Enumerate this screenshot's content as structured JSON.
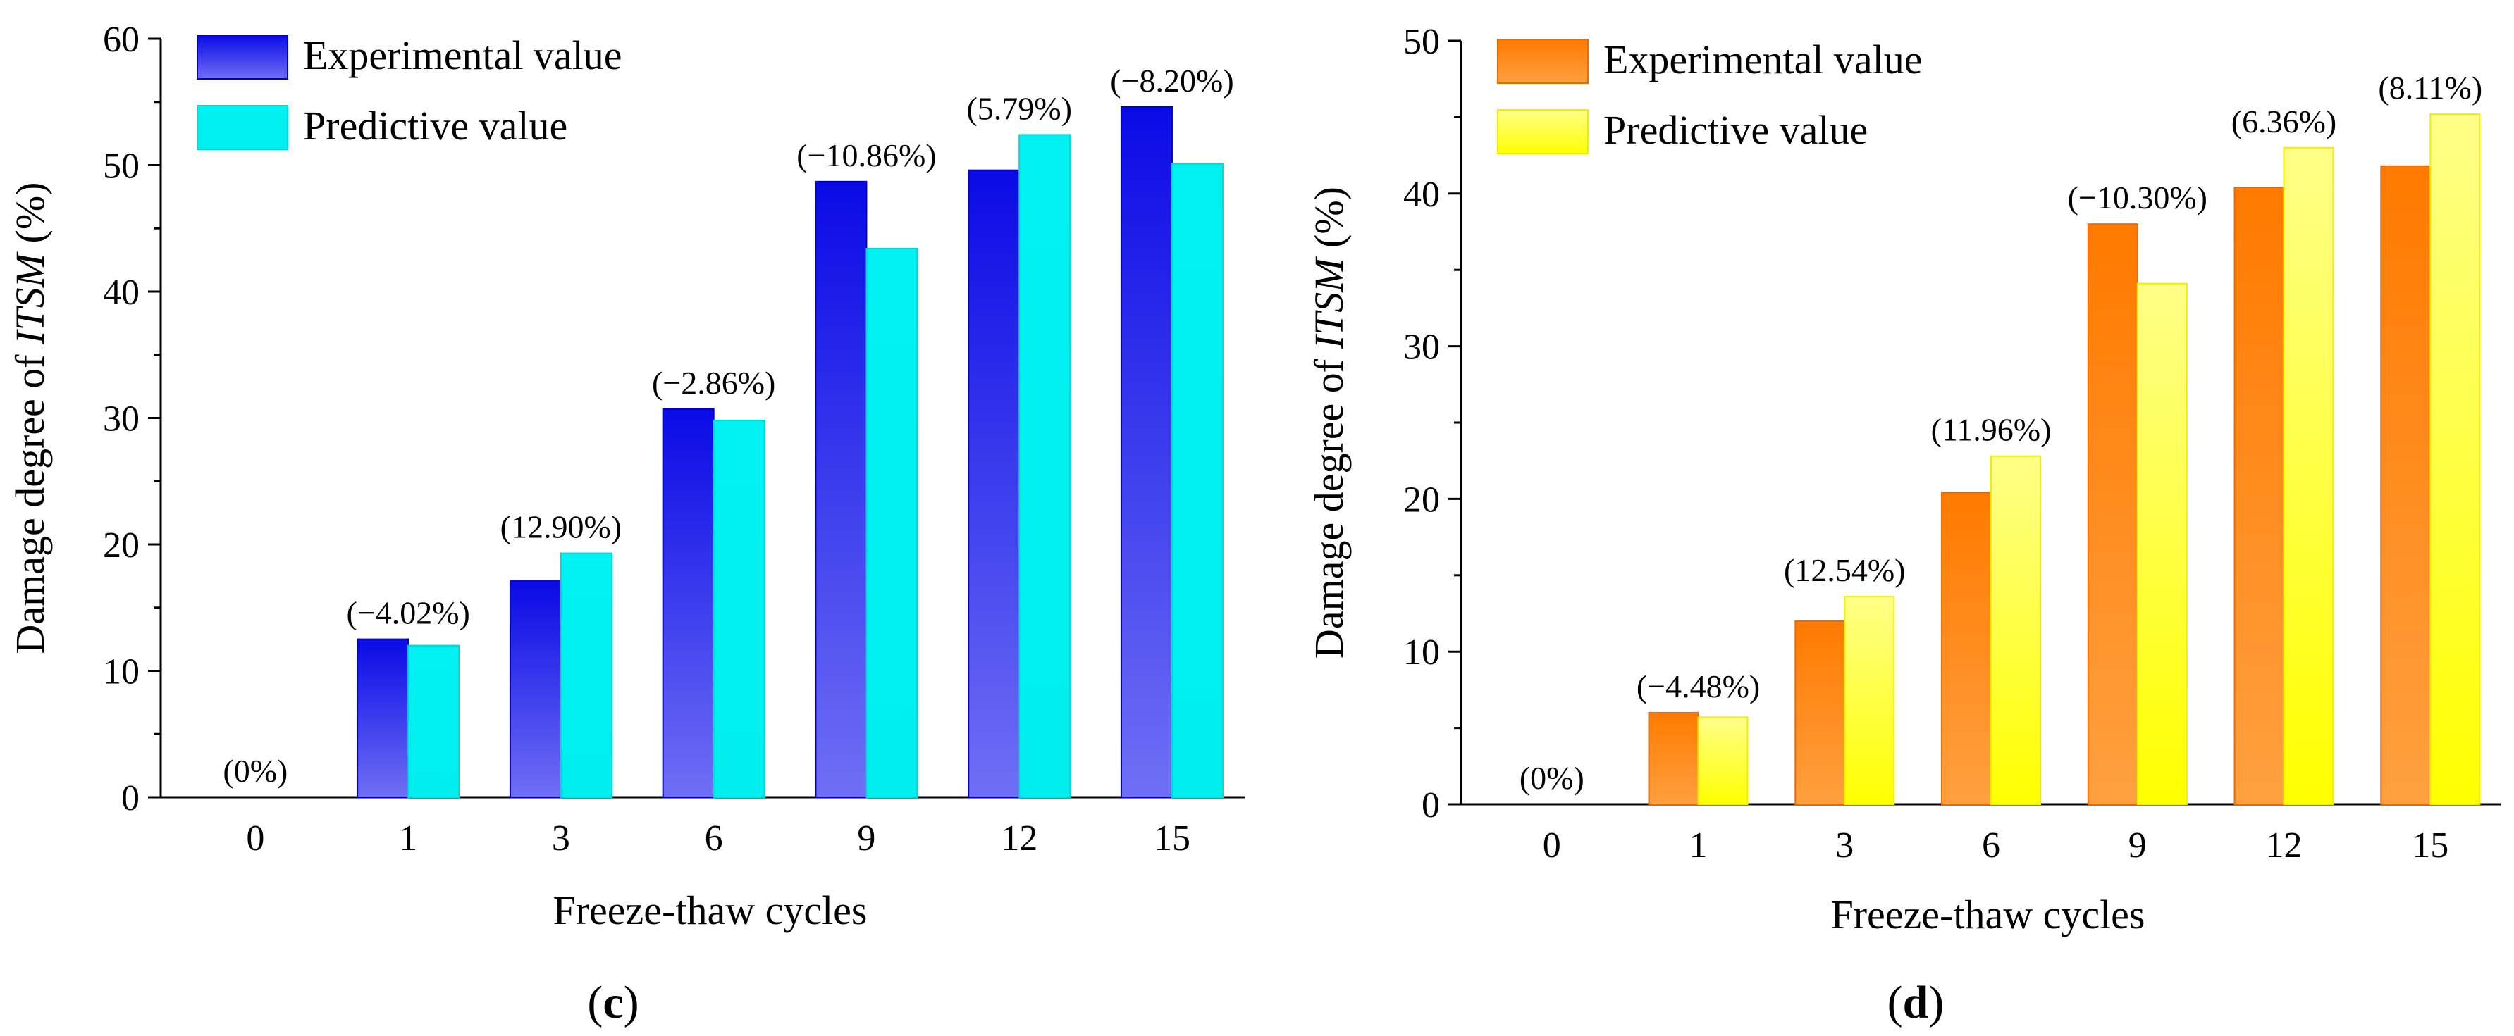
{
  "chart_data": [
    {
      "panel": "c",
      "type": "bar",
      "xlabel": "Freeze-thaw cycles",
      "ylabel_prefix": "Damage degree of ",
      "ylabel_italic": "ITSM",
      "ylabel_suffix": " (%)",
      "ylim": [
        0,
        60
      ],
      "yticks": [
        0,
        10,
        20,
        30,
        40,
        50,
        60
      ],
      "categories": [
        "0",
        "1",
        "3",
        "6",
        "9",
        "12",
        "15"
      ],
      "series": [
        {
          "name": "Experimental value",
          "values": [
            0,
            12.5,
            17.1,
            30.7,
            48.7,
            49.6,
            54.6
          ]
        },
        {
          "name": "Predictive value",
          "values": [
            0,
            12.0,
            19.3,
            29.8,
            43.4,
            52.4,
            50.1
          ]
        }
      ],
      "annotations": [
        "(0%)",
        "(−4.02%)",
        "(12.90%)",
        "(−2.86%)",
        "(−10.86%)",
        "(5.79%)",
        "(−8.20%)"
      ],
      "legend_position": "top-left",
      "colors": {
        "exp_top": "#0a0ae6",
        "exp_bottom": "#6f6ff5",
        "pred": "#00f0f0"
      }
    },
    {
      "panel": "d",
      "type": "bar",
      "xlabel": "Freeze-thaw cycles",
      "ylabel_prefix": "Damage degree of ",
      "ylabel_italic": "ITSM",
      "ylabel_suffix": " (%)",
      "ylim": [
        0,
        50
      ],
      "yticks": [
        0,
        10,
        20,
        30,
        40,
        50
      ],
      "categories": [
        "0",
        "1",
        "3",
        "6",
        "9",
        "12",
        "15"
      ],
      "series": [
        {
          "name": "Experimental value",
          "values": [
            0,
            6.0,
            12.0,
            20.4,
            38.0,
            40.4,
            41.8
          ]
        },
        {
          "name": "Predictive value",
          "values": [
            0,
            5.7,
            13.6,
            22.8,
            34.1,
            43.0,
            45.2
          ]
        }
      ],
      "annotations": [
        "(0%)",
        "(−4.48%)",
        "(12.54%)",
        "(11.96%)",
        "(−10.30%)",
        "(6.36%)",
        "(8.11%)"
      ],
      "legend_position": "top-left",
      "colors": {
        "exp_top": "#ff7a00",
        "exp_bottom": "#ffa040",
        "pred_top": "#ffff80",
        "pred_bottom": "#ffff00"
      }
    }
  ],
  "panel_labels": [
    {
      "open": "(",
      "letter": "c",
      "close": ")"
    },
    {
      "open": "(",
      "letter": "d",
      "close": ")"
    }
  ]
}
